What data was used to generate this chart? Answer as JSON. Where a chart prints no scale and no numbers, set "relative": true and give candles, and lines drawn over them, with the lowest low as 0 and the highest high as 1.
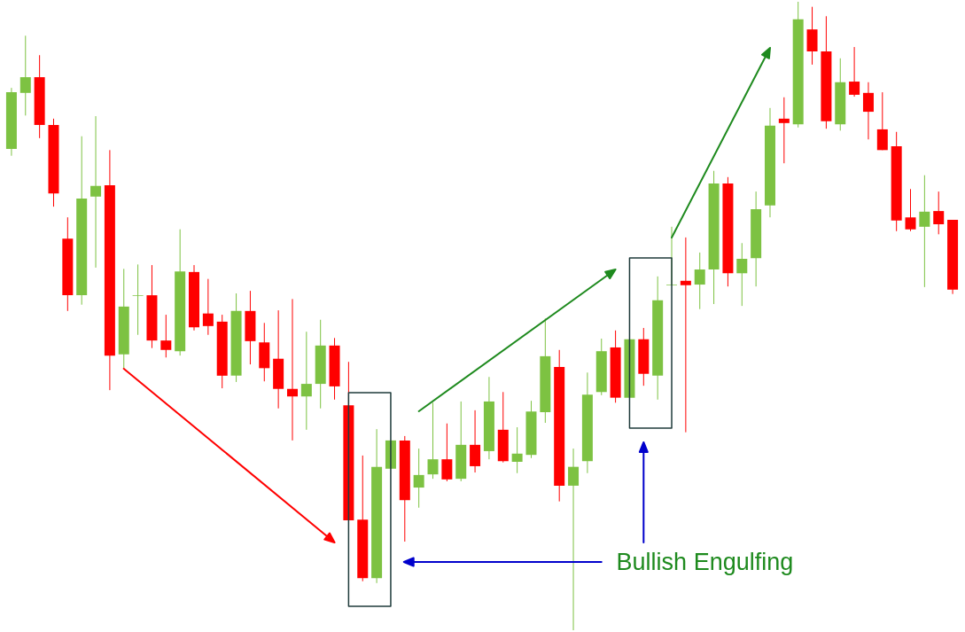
{
  "chart_data": {
    "type": "candlestick",
    "relative": true,
    "categories": [
      null,
      null,
      null,
      null,
      null,
      null,
      null,
      null,
      null,
      null,
      null,
      null,
      null,
      null,
      null,
      null,
      null,
      null,
      null,
      null,
      null,
      null,
      null,
      null,
      null,
      null,
      null,
      null,
      null,
      null,
      null,
      null,
      null,
      null,
      null,
      null,
      null,
      null,
      null,
      null,
      null,
      null,
      null,
      null,
      null,
      null,
      null,
      null,
      null,
      null,
      null,
      null,
      null,
      null,
      null,
      null,
      null,
      null,
      null,
      null,
      null,
      null,
      null,
      null,
      null,
      null,
      null,
      null
    ],
    "ohlc": [
      [
        0.766,
        0.863,
        0.755,
        0.856
      ],
      [
        0.855,
        0.946,
        0.819,
        0.88
      ],
      [
        0.88,
        0.915,
        0.783,
        0.804
      ],
      [
        0.804,
        0.814,
        0.674,
        0.695
      ],
      [
        0.623,
        0.657,
        0.508,
        0.533
      ],
      [
        0.533,
        0.786,
        0.518,
        0.687
      ],
      [
        0.69,
        0.818,
        0.577,
        0.707
      ],
      [
        0.708,
        0.764,
        0.382,
        0.437
      ],
      [
        0.439,
        0.575,
        0.416,
        0.515
      ],
      [
        0.532,
        0.582,
        0.47,
        0.533
      ],
      [
        0.533,
        0.581,
        0.449,
        0.461
      ],
      [
        0.461,
        0.502,
        0.434,
        0.446
      ],
      [
        0.444,
        0.638,
        0.437,
        0.571
      ],
      [
        0.57,
        0.581,
        0.477,
        0.482
      ],
      [
        0.504,
        0.559,
        0.47,
        0.484
      ],
      [
        0.491,
        0.502,
        0.385,
        0.405
      ],
      [
        0.405,
        0.536,
        0.395,
        0.508
      ],
      [
        0.508,
        0.54,
        0.423,
        0.46
      ],
      [
        0.458,
        0.489,
        0.396,
        0.417
      ],
      [
        0.432,
        0.509,
        0.353,
        0.384
      ],
      [
        0.384,
        0.527,
        0.302,
        0.372
      ],
      [
        0.372,
        0.475,
        0.319,
        0.392
      ],
      [
        0.392,
        0.494,
        0.353,
        0.453
      ],
      [
        0.453,
        0.465,
        0.367,
        0.388
      ],
      [
        0.358,
        0.427,
        0.175,
        0.175
      ],
      [
        0.176,
        0.278,
        0.078,
        0.083
      ],
      [
        0.083,
        0.32,
        0.075,
        0.26
      ],
      [
        0.257,
        0.302,
        0.257,
        0.302
      ],
      [
        0.302,
        0.309,
        0.141,
        0.207
      ],
      [
        0.227,
        0.289,
        0.195,
        0.247
      ],
      [
        0.248,
        0.362,
        0.241,
        0.272
      ],
      [
        0.272,
        0.329,
        0.237,
        0.24
      ],
      [
        0.241,
        0.364,
        0.237,
        0.295
      ],
      [
        0.295,
        0.35,
        0.251,
        0.261
      ],
      [
        0.285,
        0.403,
        0.272,
        0.364
      ],
      [
        0.319,
        0.379,
        0.267,
        0.269
      ],
      [
        0.268,
        0.323,
        0.25,
        0.281
      ],
      [
        0.279,
        0.365,
        0.274,
        0.348
      ],
      [
        0.347,
        0.496,
        0.33,
        0.436
      ],
      [
        0.419,
        0.446,
        0.205,
        0.23
      ],
      [
        0.23,
        0.289,
        0,
        0.26
      ],
      [
        0.269,
        0.41,
        0.25,
        0.375
      ],
      [
        0.379,
        0.464,
        0.374,
        0.444
      ],
      [
        0.45,
        0.477,
        0.362,
        0.37
      ],
      [
        0.37,
        0.463,
        0.37,
        0.463
      ],
      [
        0.463,
        0.481,
        0.389,
        0.408
      ],
      [
        0.405,
        0.563,
        0.367,
        0.525
      ],
      [
        0.549,
        0.642,
        0.549,
        0.55
      ],
      [
        0.556,
        0.625,
        0.315,
        0.549
      ],
      [
        0.55,
        0.601,
        0.511,
        0.574
      ],
      [
        0.574,
        0.731,
        0.519,
        0.711
      ],
      [
        0.711,
        0.721,
        0.547,
        0.568
      ],
      [
        0.568,
        0.616,
        0.516,
        0.591
      ],
      [
        0.592,
        0.698,
        0.547,
        0.67
      ],
      [
        0.676,
        0.831,
        0.657,
        0.803
      ],
      [
        0.814,
        0.848,
        0.743,
        0.807
      ],
      [
        0.805,
        1,
        0.8,
        0.972
      ],
      [
        0.956,
        0.992,
        0.9,
        0.921
      ],
      [
        0.921,
        0.977,
        0.798,
        0.81
      ],
      [
        0.805,
        0.91,
        0.795,
        0.872
      ],
      [
        0.873,
        0.928,
        0.849,
        0.852
      ],
      [
        0.855,
        0.872,
        0.781,
        0.825
      ],
      [
        0.797,
        0.856,
        0.764,
        0.764
      ],
      [
        0.77,
        0.793,
        0.635,
        0.652
      ],
      [
        0.657,
        0.702,
        0.635,
        0.638
      ],
      [
        0.642,
        0.724,
        0.546,
        0.666
      ],
      [
        0.667,
        0.698,
        0.63,
        0.646
      ],
      [
        0.653,
        0.653,
        0.535,
        0.542
      ]
    ],
    "colors": [
      "#7dc242",
      "#7dc242",
      "#ff0000",
      "#ff0000",
      "#ff0000",
      "#7dc242",
      "#7dc242",
      "#ff0000",
      "#7dc242",
      "#7dc242",
      "#ff0000",
      "#ff0000",
      "#7dc242",
      "#ff0000",
      "#ff0000",
      "#ff0000",
      "#7dc242",
      "#ff0000",
      "#ff0000",
      "#ff0000",
      "#ff0000",
      "#7dc242",
      "#7dc242",
      "#ff0000",
      "#ff0000",
      "#ff0000",
      "#7dc242",
      "#7dc242",
      "#ff0000",
      "#7dc242",
      "#7dc242",
      "#ff0000",
      "#7dc242",
      "#ff0000",
      "#7dc242",
      "#ff0000",
      "#7dc242",
      "#7dc242",
      "#7dc242",
      "#ff0000",
      "#7dc242",
      "#7dc242",
      "#7dc242",
      "#ff0000",
      "#7dc242",
      "#ff0000",
      "#7dc242",
      "#7dc242",
      "#ff0000",
      "#7dc242",
      "#7dc242",
      "#ff0000",
      "#7dc242",
      "#7dc242",
      "#7dc242",
      "#ff0000",
      "#7dc242",
      "#ff0000",
      "#ff0000",
      "#7dc242",
      "#ff0000",
      "#ff0000",
      "#ff0000",
      "#ff0000",
      "#ff0000",
      "#7dc242",
      "#ff0000",
      "#ff0000"
    ],
    "annotations": [
      "Bullish Engulfing"
    ]
  }
}
